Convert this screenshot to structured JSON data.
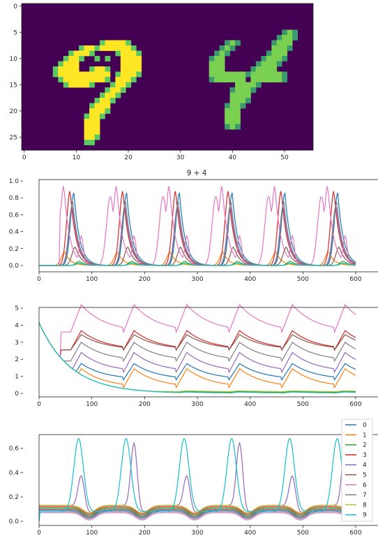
{
  "chart_data": [
    {
      "type": "heatmap",
      "title": "",
      "xticks": [
        0,
        10,
        20,
        30,
        40,
        50
      ],
      "yticks": [
        0,
        5,
        10,
        15,
        20,
        25
      ],
      "xlim": [
        -0.5,
        55.5
      ],
      "ylim": [
        27.5,
        -0.5
      ],
      "colormap": [
        "#440154",
        "#3b528b",
        "#21918c",
        "#5ec962",
        "#fde725"
      ],
      "digits": [
        {
          "label": "9",
          "color": "#fde725",
          "edge": "#5ec962"
        },
        {
          "label": "4",
          "color": "#7ad151",
          "edge": "#3b9a6d"
        }
      ]
    },
    {
      "type": "line",
      "title": "9 + 4",
      "xlim": [
        0,
        600
      ],
      "ylim": [
        0,
        1.0
      ],
      "xticks": [
        0,
        100,
        200,
        300,
        400,
        500,
        600
      ],
      "yticks": [
        "0.0",
        "0.2",
        "0.4",
        "0.6",
        "0.8",
        "1.0"
      ],
      "cycle_centers": [
        75,
        175,
        275,
        375,
        475,
        575
      ],
      "series": [
        {
          "color": "#1f77b4",
          "peak": 0.86,
          "offset": 19
        },
        {
          "color": "#ff7f0e",
          "peak": 0.16,
          "offset": 2
        },
        {
          "color": "#2ca02c",
          "peak": 0.05,
          "offset": 30
        },
        {
          "color": "#d62728",
          "peak": 0.89,
          "offset": 12
        },
        {
          "color": "#9467bd",
          "peak": 0.72,
          "offset": 16
        },
        {
          "color": "#8c564b",
          "peak": 0.22,
          "offset": 22
        },
        {
          "color": "#e377c2",
          "peak": 0.95,
          "offset": 0
        },
        {
          "color": "#7f7f7f",
          "peak": 0.75,
          "offset": 17
        },
        {
          "color": "#bcbd22",
          "peak": 0.02,
          "offset": 30
        },
        {
          "color": "#17becf",
          "peak": 0.03,
          "offset": 30
        }
      ]
    },
    {
      "type": "line",
      "title": "",
      "xlim": [
        0,
        600
      ],
      "ylim": [
        0,
        5
      ],
      "xticks": [
        0,
        100,
        200,
        300,
        400,
        500,
        600
      ],
      "yticks": [
        "0",
        "1",
        "2",
        "3",
        "4",
        "5"
      ],
      "start_value": 4.15,
      "series": [
        {
          "color": "#1f77b4",
          "low": 0.8,
          "high": 1.75
        },
        {
          "color": "#ff7f0e",
          "low": 0.35,
          "high": 1.45
        },
        {
          "color": "#2ca02c",
          "low": 0.05,
          "high": 0.12
        },
        {
          "color": "#d62728",
          "low": 2.55,
          "high": 3.68
        },
        {
          "color": "#9467bd",
          "low": 1.25,
          "high": 2.4
        },
        {
          "color": "#8c564b",
          "low": 2.55,
          "high": 3.45
        },
        {
          "color": "#e377c2",
          "low": 3.6,
          "high": 5.2
        },
        {
          "color": "#7f7f7f",
          "low": 1.9,
          "high": 3.0
        },
        {
          "color": "#bcbd22",
          "low": 0.1,
          "high": 0.15
        },
        {
          "color": "#17becf",
          "low": 0.02,
          "high": 0.08
        }
      ]
    },
    {
      "type": "line",
      "title": "",
      "xlim": [
        0,
        600
      ],
      "ylim": [
        0,
        0.7
      ],
      "xticks": [
        0,
        100,
        200,
        300,
        400,
        500,
        600
      ],
      "yticks": [
        "0.0",
        "0.2",
        "0.4",
        "0.6"
      ],
      "legend_position": "right",
      "series": [
        {
          "name": "0",
          "color": "#1f77b4",
          "base": 0.09
        },
        {
          "name": "1",
          "color": "#ff7f0e",
          "base": 0.1
        },
        {
          "name": "2",
          "color": "#2ca02c",
          "base": 0.11
        },
        {
          "name": "3",
          "color": "#d62728",
          "base": 0.12
        },
        {
          "name": "4",
          "color": "#9467bd",
          "base": 0.13
        },
        {
          "name": "5",
          "color": "#8c564b",
          "base": 0.1
        },
        {
          "name": "6",
          "color": "#e377c2",
          "base": 0.07
        },
        {
          "name": "7",
          "color": "#7f7f7f",
          "base": 0.08
        },
        {
          "name": "8",
          "color": "#bcbd22",
          "base": 0.13
        },
        {
          "name": "9",
          "color": "#17becf",
          "base": 0.0
        }
      ]
    }
  ]
}
